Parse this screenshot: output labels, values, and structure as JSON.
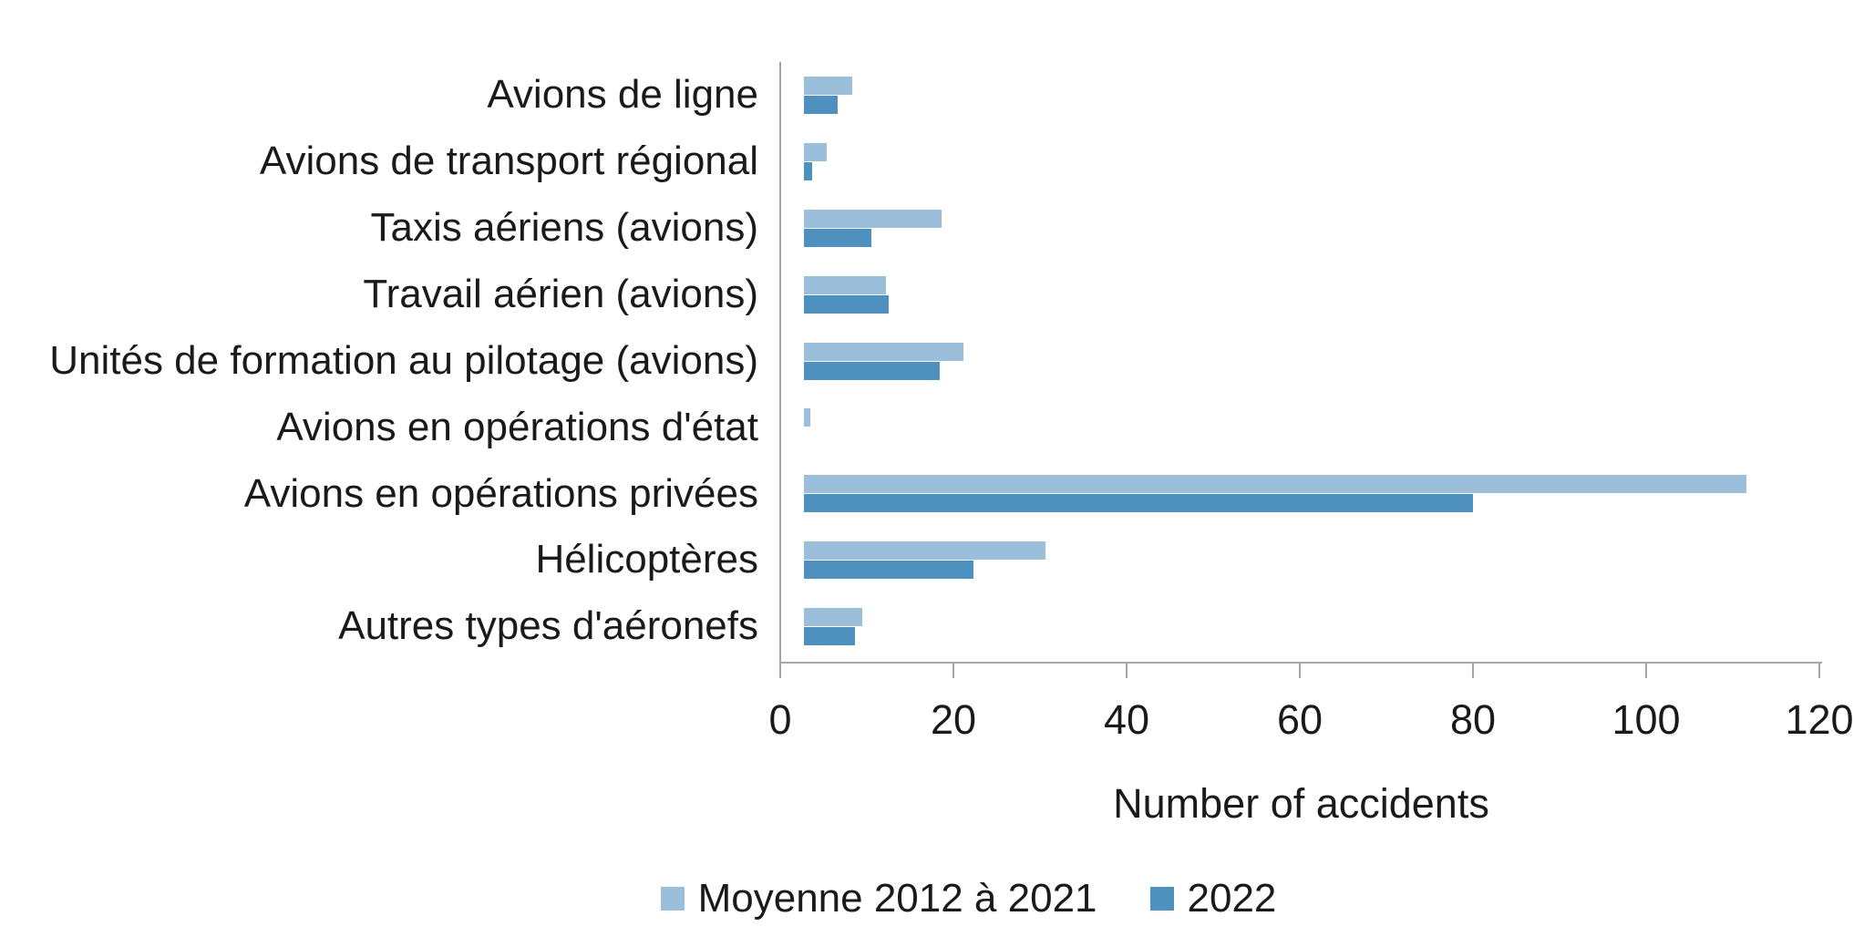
{
  "chart_data": {
    "type": "bar",
    "orientation": "horizontal",
    "title": "",
    "xlabel": "Number of accidents",
    "ylabel": "",
    "xlim": [
      0,
      120
    ],
    "xticks": [
      0,
      20,
      40,
      60,
      80,
      100,
      120
    ],
    "grid": false,
    "legend_position": "bottom",
    "background_color": "#FFFFFF",
    "axis_color": "#A6A6A6",
    "text_color": "#1A1A1A",
    "categories": [
      "Avions de ligne",
      "Avions de transport régional",
      "Taxis aériens (avions)",
      "Travail aérien (avions)",
      "Unités de formation au pilotage (avions)",
      "Avions en opérations d'état",
      "Avions en opérations privées",
      "Hélicoptères",
      "Autres types d'aéronefs"
    ],
    "series": [
      {
        "name": "Moyenne 2012 à 2021",
        "color": "#9BBEDA",
        "values": [
          5.7,
          2.7,
          16.3,
          9.7,
          18.8,
          0.8,
          111.3,
          28.5,
          6.9
        ]
      },
      {
        "name": "2022",
        "color": "#4E90BE",
        "values": [
          4,
          1,
          8,
          10,
          16,
          0,
          79,
          20,
          6
        ]
      }
    ]
  }
}
